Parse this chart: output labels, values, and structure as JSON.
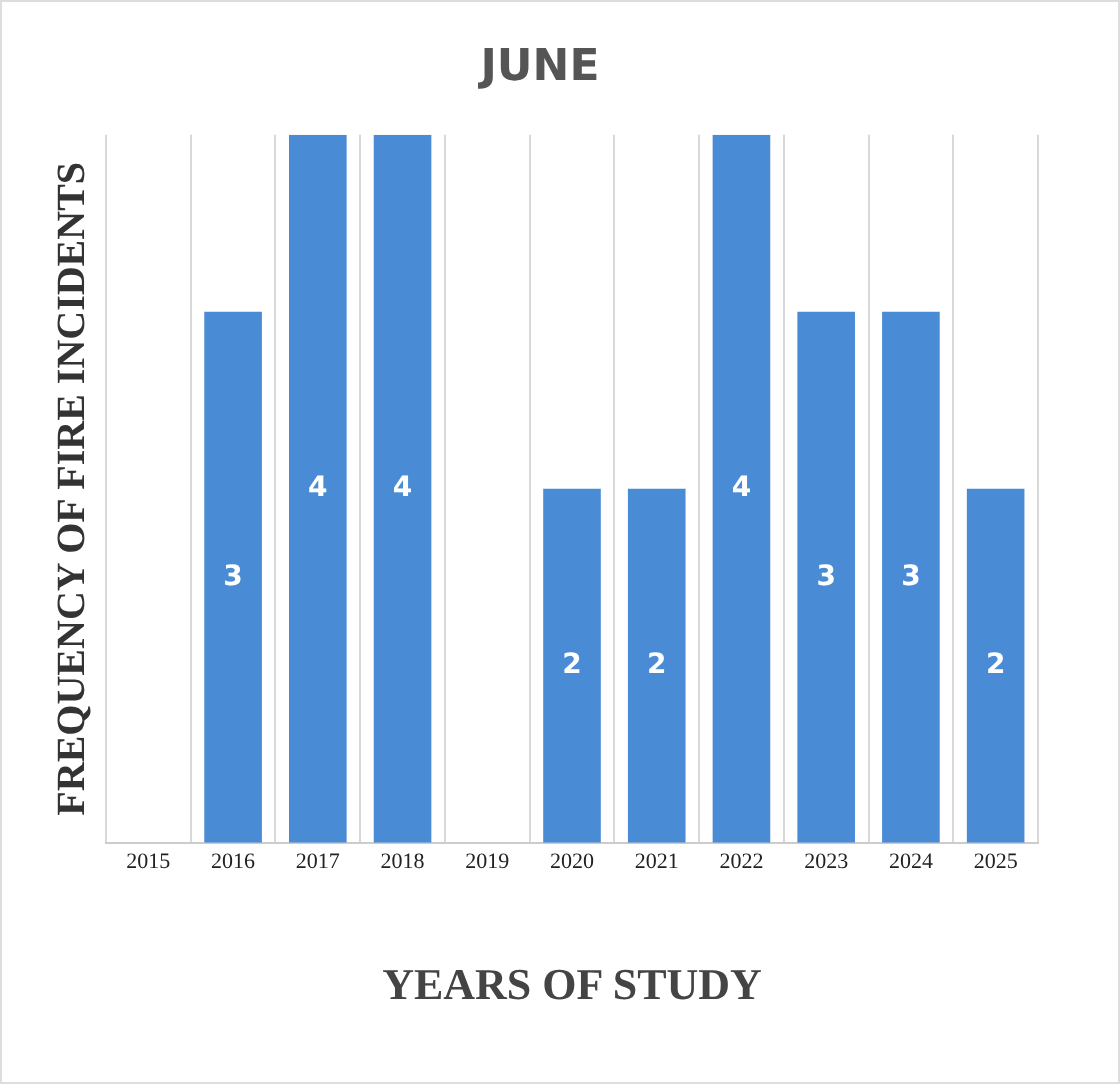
{
  "chart_data": {
    "type": "bar",
    "title": "JUNE",
    "xlabel": "YEARS OF STUDY",
    "ylabel": "FREQUENCY OF FIRE INCIDENTS",
    "categories": [
      "2015",
      "2016",
      "2017",
      "2018",
      "2019",
      "2020",
      "2021",
      "2022",
      "2023",
      "2024",
      "2025"
    ],
    "values": [
      0,
      3,
      4,
      4,
      0,
      2,
      2,
      4,
      3,
      3,
      2
    ],
    "value_labels": [
      null,
      "3",
      "4",
      "4",
      null,
      "2",
      "2",
      "4",
      "3",
      "3",
      "2"
    ],
    "color": "#4a8bd6",
    "ylim": [
      0,
      4
    ],
    "grid": "x",
    "tick_labels": "x",
    "legend": false
  }
}
